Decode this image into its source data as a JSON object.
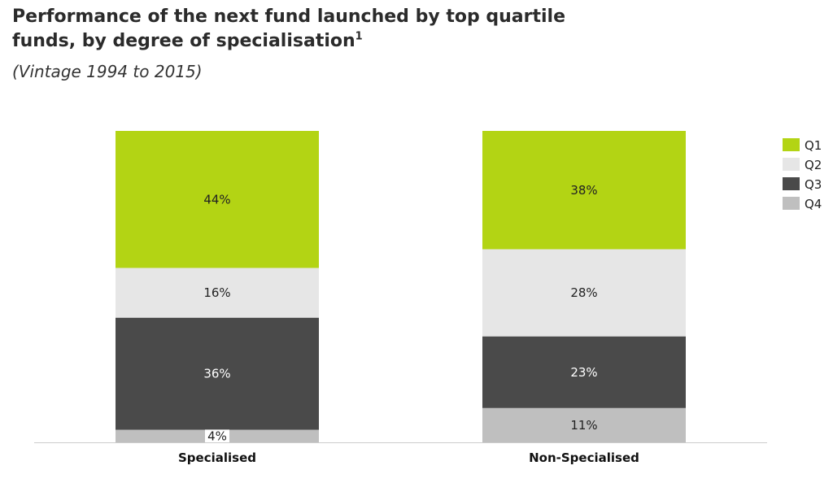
{
  "chart_data": {
    "type": "bar",
    "stacked": true,
    "title": "Performance of the next fund launched by top quartile funds, by degree of specialisation",
    "title_superscript": "1",
    "subtitle": "(Vintage 1994 to 2015)",
    "categories": [
      "Specialised",
      "Non-Specialised"
    ],
    "series": [
      {
        "name": "Q1",
        "color": "#b3d414",
        "label_color": "#222222",
        "values": [
          44,
          38
        ],
        "labels": [
          "44%",
          "38%"
        ]
      },
      {
        "name": "Q2",
        "color": "#e6e6e6",
        "label_color": "#222222",
        "values": [
          16,
          28
        ],
        "labels": [
          "16%",
          "28%"
        ]
      },
      {
        "name": "Q3",
        "color": "#4a4a4a",
        "label_color": "#ffffff",
        "values": [
          36,
          23
        ],
        "labels": [
          "36%",
          "23%"
        ]
      },
      {
        "name": "Q4",
        "color": "#bfbfbf",
        "label_color": "#222222",
        "values": [
          4,
          11
        ],
        "labels": [
          "4%",
          "11%"
        ]
      }
    ],
    "ylim": [
      0,
      100
    ],
    "grid": false,
    "legend": "top-right"
  }
}
